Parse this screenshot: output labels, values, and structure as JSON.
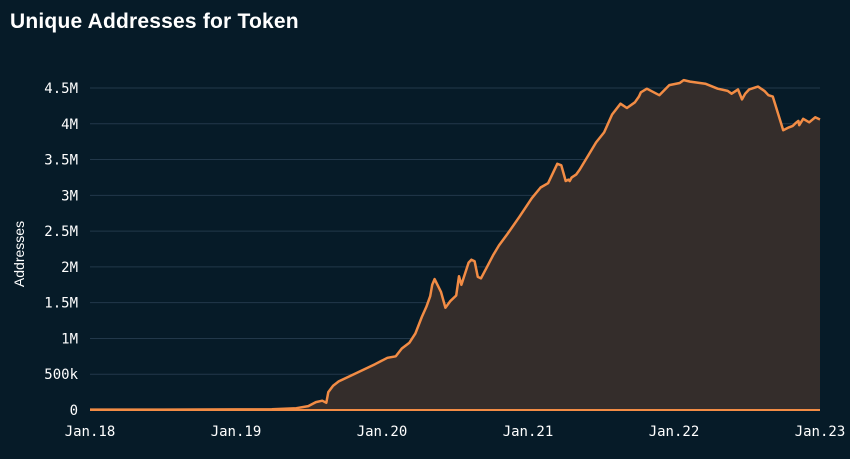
{
  "title": "Unique Addresses for Token",
  "chart_data": {
    "type": "area",
    "title": "Unique Addresses for Token",
    "xlabel": "",
    "ylabel": "Addresses",
    "x_tick_labels": [
      "Jan.18",
      "Jan.19",
      "Jan.20",
      "Jan.21",
      "Jan.22",
      "Jan.23"
    ],
    "y_tick_labels": [
      "0",
      "500k",
      "1M",
      "1.5M",
      "2M",
      "2.5M",
      "3M",
      "3.5M",
      "4M",
      "4.5M"
    ],
    "ylim": [
      0,
      4500000
    ],
    "xlim": [
      "2018-01-01",
      "2023-01-01"
    ],
    "grid": "horizontal",
    "legend": "none",
    "colors": {
      "background": "#061b28",
      "line": "#f28c45",
      "fill": "#342d2b",
      "grid": "#22384a",
      "text": "#ffffff"
    },
    "series": [
      {
        "x": [
          "2018-01-01",
          "2018-07-01",
          "2019-01-01",
          "2019-04-01",
          "2019-06-01",
          "2019-07-01",
          "2019-07-20",
          "2019-08-05",
          "2019-08-15",
          "2019-08-20",
          "2019-09-01",
          "2019-09-15",
          "2019-10-15",
          "2019-11-15",
          "2019-12-15",
          "2020-01-15",
          "2020-02-05",
          "2020-02-20",
          "2020-03-10",
          "2020-03-25",
          "2020-04-10",
          "2020-04-22",
          "2020-05-01",
          "2020-05-06",
          "2020-05-12",
          "2020-05-28",
          "2020-06-08",
          "2020-06-20",
          "2020-07-05",
          "2020-07-12",
          "2020-07-18",
          "2020-08-05",
          "2020-08-12",
          "2020-08-20",
          "2020-08-28",
          "2020-09-05",
          "2020-09-20",
          "2020-10-05",
          "2020-10-20",
          "2020-11-10",
          "2020-12-10",
          "2021-01-10",
          "2021-02-01",
          "2021-02-20",
          "2021-03-15",
          "2021-03-25",
          "2021-04-05",
          "2021-04-12",
          "2021-04-15",
          "2021-04-20",
          "2021-05-01",
          "2021-05-10",
          "2021-06-05",
          "2021-06-20",
          "2021-07-10",
          "2021-07-30",
          "2021-08-20",
          "2021-09-05",
          "2021-09-25",
          "2021-10-05",
          "2021-10-10",
          "2021-10-25",
          "2021-11-25",
          "2021-12-20",
          "2022-01-15",
          "2022-01-25",
          "2022-02-10",
          "2022-03-20",
          "2022-04-20",
          "2022-05-15",
          "2022-05-25",
          "2022-06-10",
          "2022-06-20",
          "2022-06-28",
          "2022-07-08",
          "2022-07-30",
          "2022-08-15",
          "2022-08-25",
          "2022-09-05",
          "2022-10-01",
          "2022-10-15",
          "2022-10-25",
          "2022-11-01",
          "2022-11-08",
          "2022-11-10",
          "2022-11-20",
          "2022-12-05",
          "2022-12-20",
          "2023-01-01"
        ],
        "values": [
          5000,
          6000,
          8000,
          10000,
          25000,
          55000,
          110000,
          130000,
          100000,
          250000,
          340000,
          400000,
          480000,
          560000,
          640000,
          730000,
          750000,
          860000,
          940000,
          1070000,
          1300000,
          1450000,
          1590000,
          1750000,
          1830000,
          1650000,
          1430000,
          1520000,
          1600000,
          1870000,
          1750000,
          2060000,
          2100000,
          2080000,
          1860000,
          1840000,
          2000000,
          2160000,
          2300000,
          2460000,
          2700000,
          2960000,
          3110000,
          3170000,
          3440000,
          3420000,
          3200000,
          3220000,
          3200000,
          3250000,
          3290000,
          3360000,
          3600000,
          3740000,
          3880000,
          4130000,
          4280000,
          4220000,
          4300000,
          4380000,
          4440000,
          4490000,
          4400000,
          4540000,
          4570000,
          4610000,
          4590000,
          4560000,
          4490000,
          4460000,
          4420000,
          4480000,
          4340000,
          4420000,
          4480000,
          4520000,
          4460000,
          4400000,
          4380000,
          3910000,
          3950000,
          3970000,
          4010000,
          4040000,
          3980000,
          4070000,
          4020000,
          4090000,
          4060000
        ]
      }
    ]
  }
}
